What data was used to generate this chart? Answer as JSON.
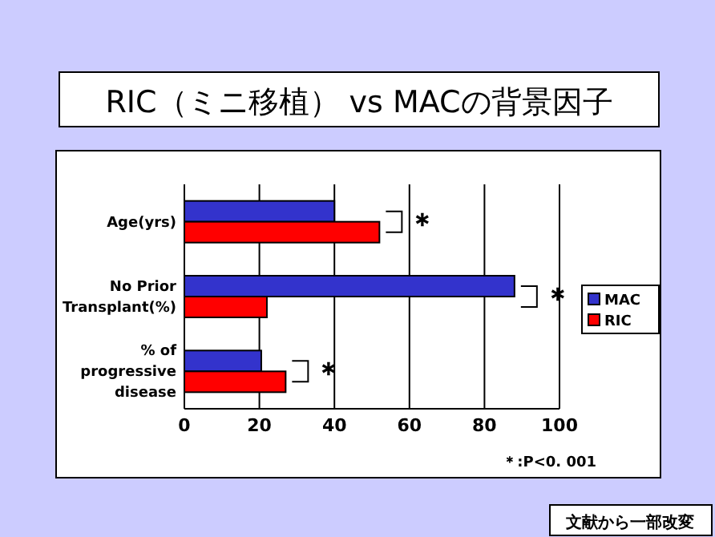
{
  "chart_data": {
    "type": "bar",
    "orientation": "horizontal",
    "title": "RIC（ミニ移植） vs MACの背景因子",
    "categories": [
      "Age(yrs)",
      "No Prior\nTransplant(%)",
      "% of\nprogressive\ndisease"
    ],
    "series": [
      {
        "name": "MAC",
        "color": "#3333cc",
        "values": [
          40,
          88,
          20.5
        ]
      },
      {
        "name": "RIC",
        "color": "#ff0000",
        "values": [
          52,
          22,
          27
        ]
      }
    ],
    "xlim": [
      0,
      100
    ],
    "xticks": [
      0,
      20,
      40,
      60,
      80,
      100
    ],
    "grid": "x",
    "legend": "right",
    "annotations": [
      "＊",
      "＊",
      "＊",
      "＊:P<0. 001",
      "文献から一部改変"
    ]
  }
}
